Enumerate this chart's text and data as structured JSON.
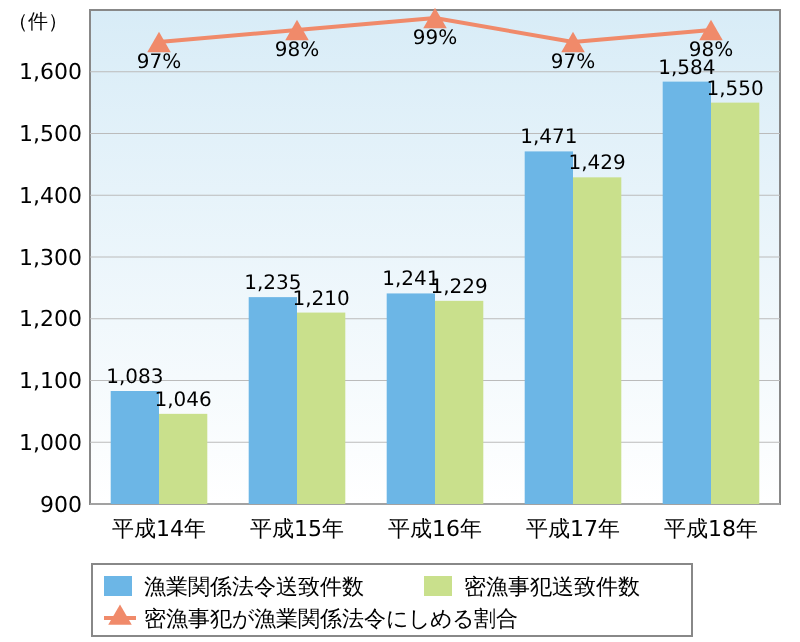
{
  "chart_data": {
    "type": "bar",
    "ylabel": "（件）",
    "categories": [
      "平成14年",
      "平成15年",
      "平成16年",
      "平成17年",
      "平成18年"
    ],
    "series": [
      {
        "name": "漁業関係法令送致件数",
        "color": "#6cb6e6",
        "values": [
          1083,
          1235,
          1241,
          1471,
          1584
        ],
        "value_labels": [
          "1,083",
          "1,235",
          "1,241",
          "1,471",
          "1,584"
        ]
      },
      {
        "name": "密漁事犯送致件数",
        "color": "#c9e08c",
        "values": [
          1046,
          1210,
          1229,
          1429,
          1550
        ],
        "value_labels": [
          "1,046",
          "1,210",
          "1,229",
          "1,429",
          "1,550"
        ]
      },
      {
        "name": "密漁事犯が漁業関係法令にしめる割合",
        "type": "line",
        "axis": "y2",
        "color": "#f08a6a",
        "marker": "triangle",
        "values": [
          97,
          98,
          99,
          97,
          98
        ],
        "value_labels": [
          "97%",
          "98%",
          "99%",
          "97%",
          "98%"
        ]
      }
    ],
    "ylim": [
      900,
      1700
    ],
    "yticks": [
      {
        "value": 900,
        "label": "900"
      },
      {
        "value": 1000,
        "label": "1,000"
      },
      {
        "value": 1100,
        "label": "1,100"
      },
      {
        "value": 1200,
        "label": "1,200"
      },
      {
        "value": 1300,
        "label": "1,300"
      },
      {
        "value": 1400,
        "label": "1,400"
      },
      {
        "value": 1500,
        "label": "1,500"
      },
      {
        "value": 1600,
        "label": "1,600"
      }
    ],
    "grid": "y",
    "legend": "bottom"
  }
}
